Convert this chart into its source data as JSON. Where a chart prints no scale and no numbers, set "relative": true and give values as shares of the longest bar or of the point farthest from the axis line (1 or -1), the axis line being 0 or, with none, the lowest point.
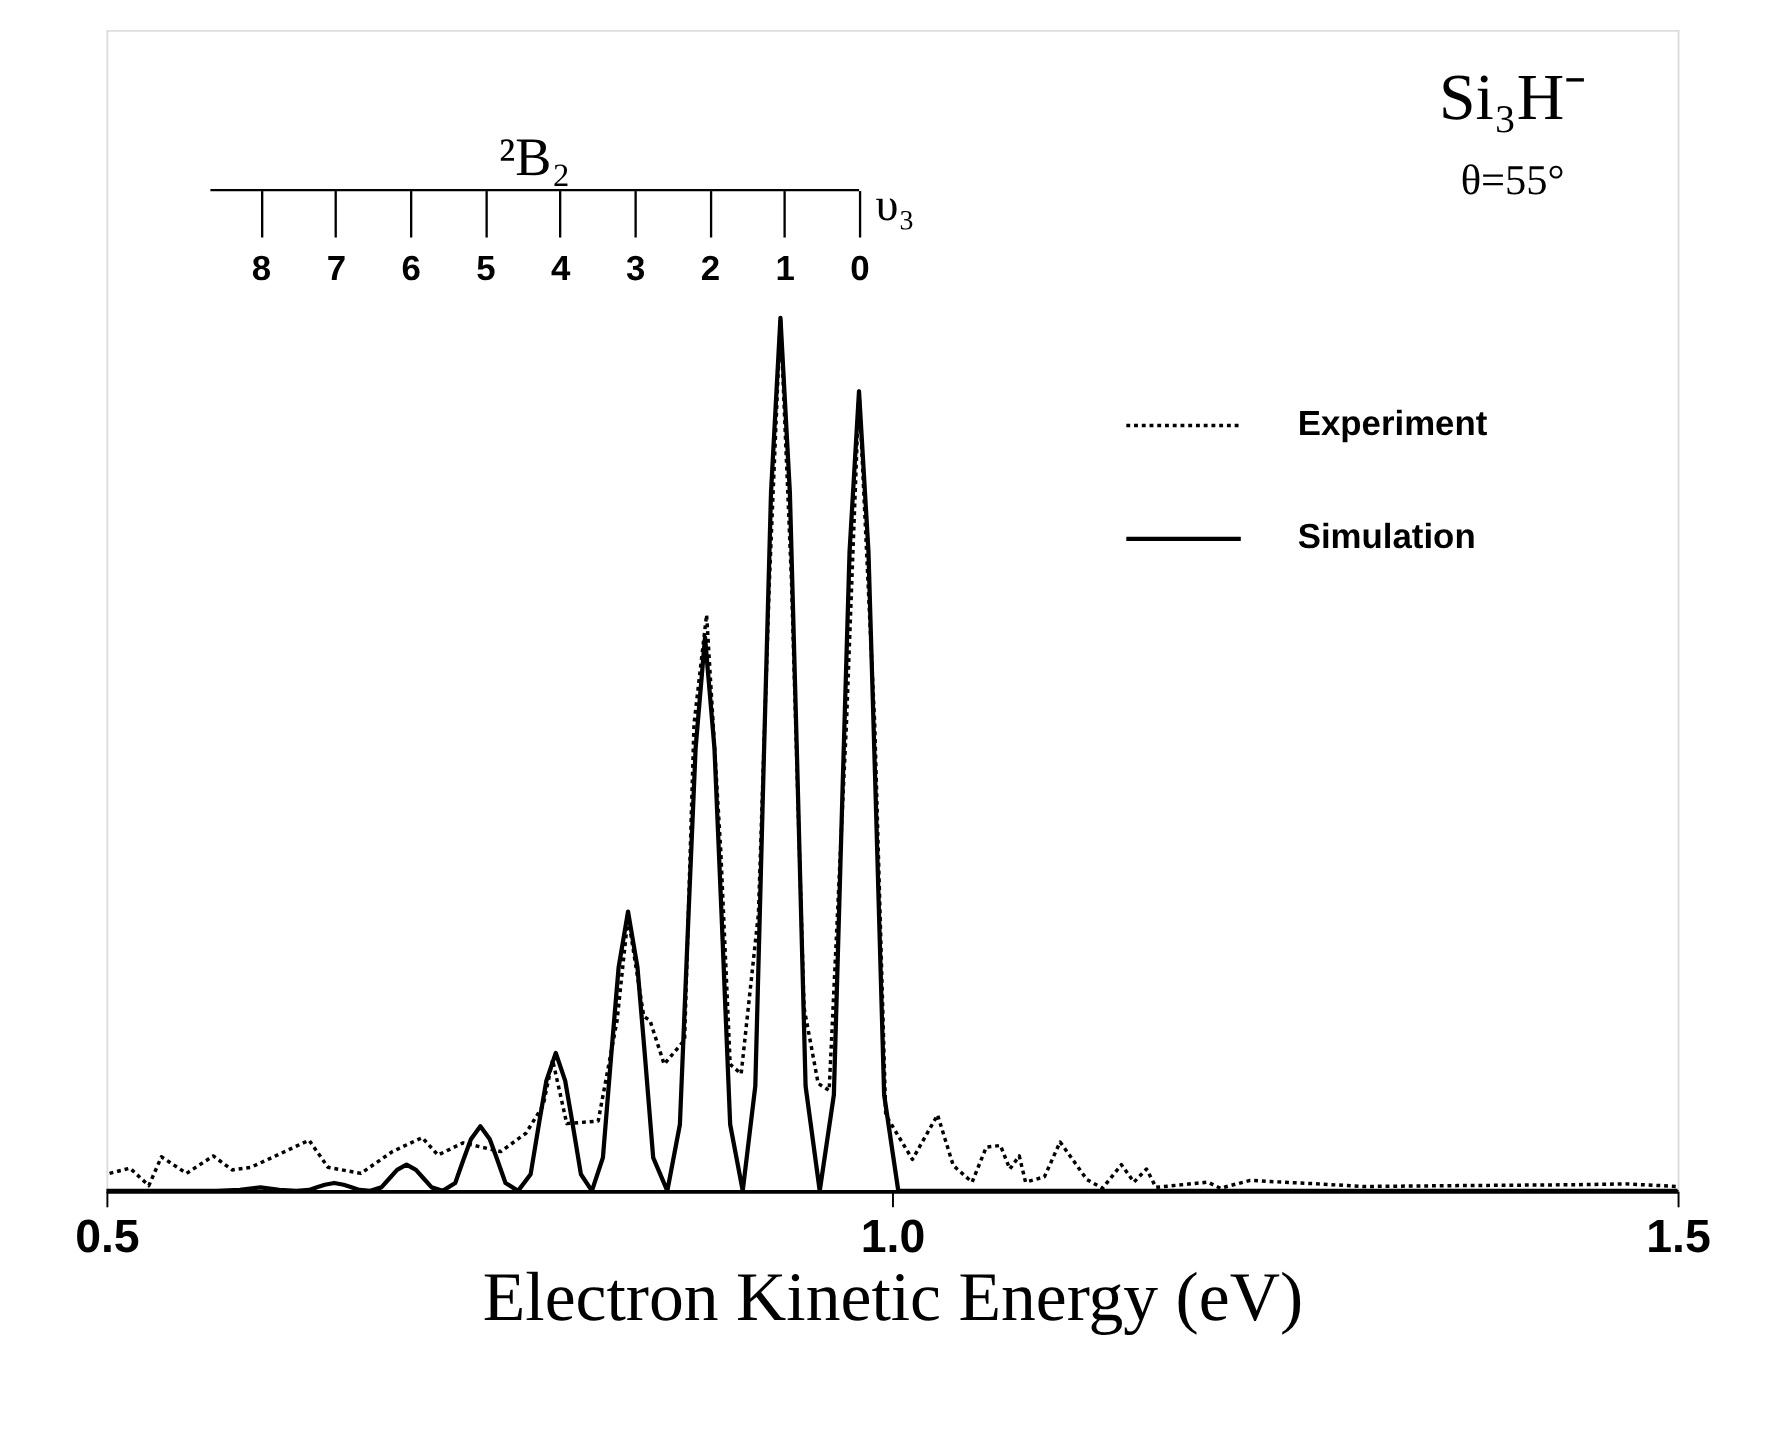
{
  "chart_data": {
    "type": "line",
    "title": "Si₃H⁻",
    "subtitle": "θ=55°",
    "xlabel": "Electron Kinetic Energy (eV)",
    "x2label": "υ₃",
    "relative": true,
    "xlim": [
      0.5,
      1.5
    ],
    "xticks": [
      {
        "value": 0.5,
        "label": "0.5"
      },
      {
        "value": 1.0,
        "label": "1.0"
      },
      {
        "value": 1.5,
        "label": "1.5"
      }
    ],
    "x2lim": [
      10.06,
      -10.94
    ],
    "x2ticks": [
      8,
      7,
      6,
      5,
      4,
      3,
      2,
      1,
      0
    ],
    "tick_labels": "x",
    "grid": false,
    "legend": "top right",
    "marker": "none",
    "series": [
      {
        "name": "Experiment",
        "color": "#000000",
        "line_style": "dotted",
        "x": [
          0.502,
          0.515,
          0.527,
          0.535,
          0.551,
          0.568,
          0.58,
          0.592,
          0.604,
          0.629,
          0.641,
          0.662,
          0.682,
          0.701,
          0.711,
          0.727,
          0.751,
          0.767,
          0.778,
          0.784,
          0.793,
          0.813,
          0.825,
          0.832,
          0.842,
          0.846,
          0.855,
          0.868,
          0.874,
          0.882,
          0.891,
          0.897,
          0.904,
          0.915,
          0.922,
          0.929,
          0.936,
          0.944,
          0.953,
          0.96,
          0.971,
          0.979,
          0.989,
          0.996,
          1.013,
          1.029,
          1.039,
          1.051,
          1.06,
          1.069,
          1.075,
          1.081,
          1.085,
          1.097,
          1.107,
          1.124,
          1.134,
          1.146,
          1.154,
          1.162,
          1.168,
          1.201,
          1.209,
          1.228,
          1.248,
          1.271,
          1.3,
          1.36,
          1.434,
          1.467,
          1.5
        ],
        "values": [
          0.02,
          0.026,
          0.006,
          0.039,
          0.02,
          0.04,
          0.024,
          0.027,
          0.037,
          0.058,
          0.027,
          0.02,
          0.045,
          0.061,
          0.041,
          0.055,
          0.045,
          0.066,
          0.098,
          0.15,
          0.077,
          0.08,
          0.195,
          0.314,
          0.2,
          0.195,
          0.145,
          0.173,
          0.535,
          0.66,
          0.39,
          0.145,
          0.134,
          0.318,
          0.7,
          1.0,
          0.7,
          0.21,
          0.123,
          0.115,
          0.535,
          0.916,
          0.535,
          0.087,
          0.036,
          0.087,
          0.029,
          0.01,
          0.05,
          0.052,
          0.025,
          0.04,
          0.01,
          0.016,
          0.056,
          0.013,
          0.003,
          0.03,
          0.01,
          0.025,
          0.004,
          0.01,
          0.003,
          0.012,
          0.01,
          0.008,
          0.005,
          0.006,
          0.007,
          0.008,
          0.005
        ]
      },
      {
        "name": "Simulation",
        "color": "#000000",
        "line_style": "solid",
        "x": [
          0.5,
          0.57,
          0.585,
          0.598,
          0.61,
          0.621,
          0.629,
          0.6345,
          0.639,
          0.645,
          0.651,
          0.6555,
          0.661,
          0.668,
          0.675,
          0.6805,
          0.685,
          0.691,
          0.697,
          0.7015,
          0.707,
          0.714,
          0.722,
          0.7275,
          0.732,
          0.738,
          0.744,
          0.7485,
          0.754,
          0.762,
          0.77,
          0.7755,
          0.78,
          0.786,
          0.792,
          0.7965,
          0.802,
          0.809,
          0.816,
          0.8215,
          0.826,
          0.832,
          0.838,
          0.8425,
          0.848,
          0.857,
          0.865,
          0.8705,
          0.875,
          0.881,
          0.887,
          0.8915,
          0.897,
          0.905,
          0.913,
          0.9185,
          0.923,
          0.929,
          0.935,
          0.9395,
          0.945,
          0.954,
          0.963,
          0.9685,
          0.973,
          0.979,
          0.985,
          0.9895,
          0.995,
          1.004,
          1.5
        ],
        "values": [
          0,
          0,
          0.001,
          0.004,
          0.001,
          0,
          0.001,
          0.0045,
          0.007,
          0.009,
          0.007,
          0.0045,
          0.001,
          0,
          0.004,
          0.015,
          0.024,
          0.03,
          0.024,
          0.015,
          0.004,
          0,
          0.009,
          0.037,
          0.059,
          0.074,
          0.059,
          0.037,
          0.009,
          0,
          0.019,
          0.079,
          0.126,
          0.158,
          0.126,
          0.079,
          0.019,
          0,
          0.038,
          0.16,
          0.256,
          0.32,
          0.256,
          0.16,
          0.038,
          0,
          0.076,
          0.317,
          0.507,
          0.634,
          0.507,
          0.317,
          0.076,
          0,
          0.12,
          0.5,
          0.8,
          1.0,
          0.8,
          0.5,
          0.12,
          0,
          0.11,
          0.458,
          0.733,
          0.916,
          0.733,
          0.458,
          0.11,
          0,
          0
        ]
      }
    ],
    "annotations": [
      "²B₂"
    ]
  }
}
